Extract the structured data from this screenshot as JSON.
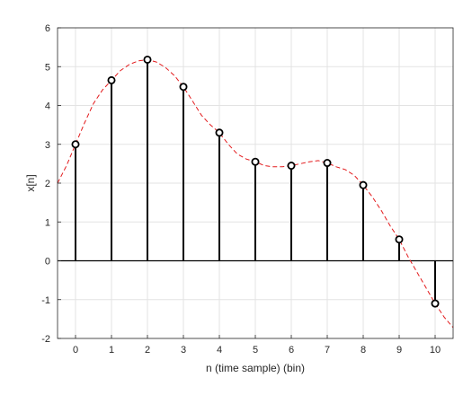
{
  "chart_data": {
    "type": "stem",
    "xlabel": "n (time sample) (bin)",
    "ylabel": "x[n]",
    "xlim": [
      -0.5,
      10.5
    ],
    "ylim": [
      -2,
      6
    ],
    "x_ticks": [
      0,
      1,
      2,
      3,
      4,
      5,
      6,
      7,
      8,
      9,
      10
    ],
    "y_ticks": [
      -2,
      -1,
      0,
      1,
      2,
      3,
      4,
      5,
      6
    ],
    "grid": true,
    "x_tick_labels": [
      "0",
      "1",
      "2",
      "3",
      "4",
      "5",
      "6",
      "7",
      "8",
      "9",
      "10"
    ],
    "y_tick_labels": [
      "-2",
      "-1",
      "0",
      "1",
      "2",
      "3",
      "4",
      "5",
      "6"
    ],
    "series": [
      {
        "style": "stem",
        "color": "#000000",
        "marker": "circle-open",
        "x": [
          0,
          1,
          2,
          3,
          4,
          5,
          6,
          7,
          8,
          9,
          10
        ],
        "y": [
          3.0,
          4.65,
          5.18,
          4.48,
          3.3,
          2.55,
          2.45,
          2.52,
          1.95,
          0.55,
          -1.1
        ]
      },
      {
        "style": "dashed-line",
        "color": "#e31a1c",
        "x": [
          -0.5,
          -0.25,
          0,
          0.25,
          0.5,
          0.75,
          1,
          1.25,
          1.5,
          1.75,
          2,
          2.25,
          2.5,
          2.75,
          3,
          3.25,
          3.5,
          3.75,
          4,
          4.25,
          4.5,
          4.75,
          5,
          5.25,
          5.5,
          5.75,
          6,
          6.25,
          6.5,
          6.75,
          7,
          7.25,
          7.5,
          7.75,
          8,
          8.25,
          8.5,
          8.75,
          9,
          9.25,
          9.5,
          9.75,
          10,
          10.25,
          10.5
        ],
        "y": [
          2.0,
          2.45,
          3.0,
          3.55,
          4.05,
          4.4,
          4.65,
          4.9,
          5.06,
          5.15,
          5.18,
          5.12,
          4.98,
          4.77,
          4.48,
          4.12,
          3.75,
          3.5,
          3.3,
          3.0,
          2.75,
          2.62,
          2.55,
          2.45,
          2.42,
          2.42,
          2.45,
          2.5,
          2.55,
          2.58,
          2.52,
          2.42,
          2.35,
          2.2,
          1.95,
          1.65,
          1.3,
          0.9,
          0.55,
          0.1,
          -0.3,
          -0.7,
          -1.1,
          -1.45,
          -1.72
        ]
      }
    ]
  }
}
